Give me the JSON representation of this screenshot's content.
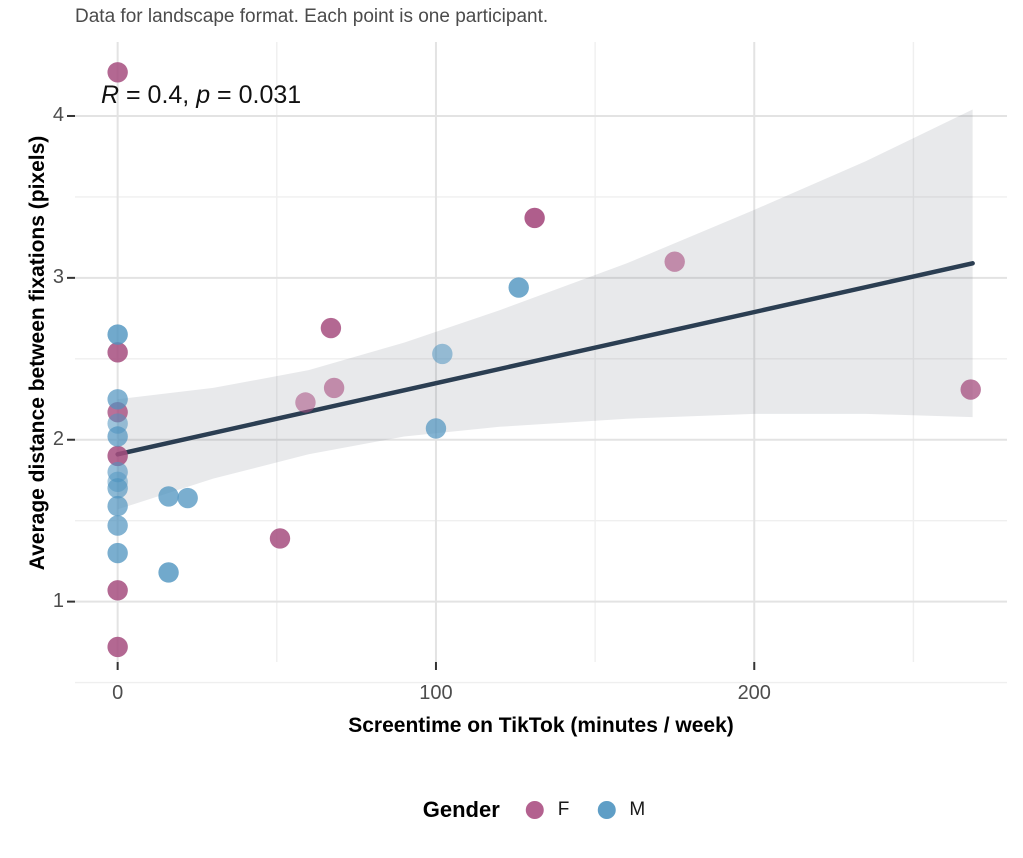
{
  "subtitle": "Data for landscape format. Each point is one participant.",
  "annotation": {
    "r_symbol": "R",
    "r_rest": " = 0.4, ",
    "p_symbol": "p",
    "p_rest": " = 0.031"
  },
  "x_axis": {
    "title": "Screentime on TikTok (minutes / week)"
  },
  "y_axis": {
    "title": "Average distance between fixations (pixels)"
  },
  "legend": {
    "title": "Gender",
    "items": [
      {
        "label": "F",
        "color": "#b3618f"
      },
      {
        "label": "M",
        "color": "#5f9ec6"
      }
    ]
  },
  "chart_data": {
    "type": "scatter",
    "subtitle": "Data for landscape format. Each point is one participant.",
    "xlabel": "Screentime on TikTok (minutes / week)",
    "ylabel": "Average distance between fixations (pixels)",
    "xlim": [
      -13.4,
      279.4
    ],
    "ylim": [
      0.627,
      4.457
    ],
    "x_major_ticks": [
      0,
      100,
      200
    ],
    "x_minor_ticks": [
      50,
      150,
      250
    ],
    "y_major_ticks": [
      1,
      2,
      3,
      4
    ],
    "y_minor_ticks": [
      0.5,
      1.5,
      2.5,
      3.5
    ],
    "grid": {
      "major_color": "#e3e3e3",
      "minor_color": "#efefef",
      "major_width": 2,
      "minor_width": 1.4
    },
    "axis_tick_color": "#333333",
    "correlation": {
      "R": 0.4,
      "p": 0.031
    },
    "point_radius": 10.2,
    "series": [
      {
        "name": "F",
        "color": "#a64d7f",
        "points": [
          {
            "x": 0,
            "y": 4.27,
            "o": 0.85
          },
          {
            "x": 0,
            "y": 2.54,
            "o": 0.85
          },
          {
            "x": 0,
            "y": 2.17,
            "o": 0.8
          },
          {
            "x": 0,
            "y": 1.9,
            "o": 0.85
          },
          {
            "x": 0,
            "y": 1.07,
            "o": 0.85
          },
          {
            "x": 0,
            "y": 0.72,
            "o": 0.85
          },
          {
            "x": 51,
            "y": 1.39,
            "o": 0.85
          },
          {
            "x": 59,
            "y": 2.23,
            "o": 0.55
          },
          {
            "x": 67,
            "y": 2.69,
            "o": 0.85
          },
          {
            "x": 68,
            "y": 2.32,
            "o": 0.6
          },
          {
            "x": 131,
            "y": 3.37,
            "o": 0.9
          },
          {
            "x": 175,
            "y": 3.1,
            "o": 0.6
          },
          {
            "x": 268,
            "y": 2.31,
            "o": 0.75
          }
        ]
      },
      {
        "name": "M",
        "color": "#4e93bf",
        "points": [
          {
            "x": 0,
            "y": 2.65,
            "o": 0.8
          },
          {
            "x": 0,
            "y": 2.25,
            "o": 0.7
          },
          {
            "x": 0,
            "y": 2.1,
            "o": 0.55
          },
          {
            "x": 0,
            "y": 2.02,
            "o": 0.7
          },
          {
            "x": 0,
            "y": 1.8,
            "o": 0.6
          },
          {
            "x": 0,
            "y": 1.74,
            "o": 0.5
          },
          {
            "x": 0,
            "y": 1.7,
            "o": 0.65
          },
          {
            "x": 0,
            "y": 1.59,
            "o": 0.7
          },
          {
            "x": 0,
            "y": 1.47,
            "o": 0.7
          },
          {
            "x": 0,
            "y": 1.3,
            "o": 0.75
          },
          {
            "x": 16,
            "y": 1.65,
            "o": 0.75
          },
          {
            "x": 22,
            "y": 1.64,
            "o": 0.75
          },
          {
            "x": 16,
            "y": 1.18,
            "o": 0.8
          },
          {
            "x": 100,
            "y": 2.07,
            "o": 0.7
          },
          {
            "x": 102,
            "y": 2.53,
            "o": 0.55
          },
          {
            "x": 126,
            "y": 2.94,
            "o": 0.8
          }
        ]
      }
    ],
    "regression_line": {
      "x": [
        0,
        268.6
      ],
      "y": [
        1.91,
        3.09
      ],
      "color": "#2b3e52",
      "width": 4.5
    },
    "ci_band": {
      "x": [
        0,
        30,
        60,
        90,
        120,
        160,
        200,
        235,
        268.6
      ],
      "upper": [
        2.25,
        2.32,
        2.43,
        2.6,
        2.8,
        3.09,
        3.42,
        3.72,
        4.04
      ],
      "lower": [
        1.57,
        1.76,
        1.91,
        2.02,
        2.08,
        2.13,
        2.16,
        2.16,
        2.14
      ],
      "color": "#5a6472",
      "opacity": 0.14
    }
  }
}
